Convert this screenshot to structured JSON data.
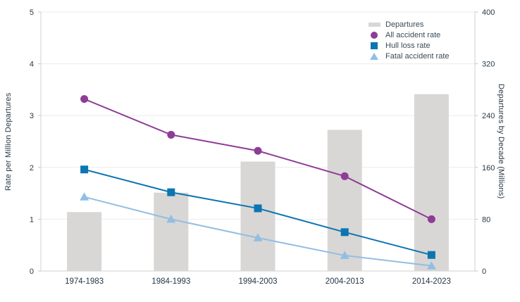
{
  "chart_data": {
    "type": "bar+line combo",
    "categories": [
      "1974-1983",
      "1984-1993",
      "1994-2003",
      "2004-2013",
      "2014-2023"
    ],
    "series": [
      {
        "name": "Departures",
        "type": "bar",
        "axis": "right",
        "marker": "bar",
        "values": [
          91,
          121,
          169,
          218,
          273
        ],
        "color": "#d8d7d5"
      },
      {
        "name": "All accident rate",
        "type": "line",
        "axis": "left",
        "marker": "circle",
        "values": [
          3.32,
          2.63,
          2.32,
          1.83,
          1.0
        ],
        "color": "#8e3c96"
      },
      {
        "name": "Hull loss rate",
        "type": "line",
        "axis": "left",
        "marker": "square",
        "values": [
          1.96,
          1.52,
          1.21,
          0.75,
          0.31
        ],
        "color": "#0c75b2"
      },
      {
        "name": "Fatal accident rate",
        "type": "line",
        "axis": "left",
        "marker": "triangle",
        "values": [
          1.43,
          1.0,
          0.64,
          0.3,
          0.1
        ],
        "color": "#92bee4"
      }
    ],
    "left_axis": {
      "label": "Rate per Million Departures",
      "min": 0,
      "max": 5,
      "ticks": [
        0,
        1,
        2,
        3,
        4,
        5
      ]
    },
    "right_axis": {
      "label": "Departures by Decade (Millions)",
      "min": 0,
      "max": 400,
      "ticks": [
        0,
        80,
        160,
        240,
        320,
        400
      ]
    },
    "legend": {
      "position": "top-right",
      "entries": [
        "Departures",
        "All accident rate",
        "Hull loss rate",
        "Fatal accident rate"
      ]
    },
    "grid": "horizontal",
    "colors": {
      "text": "#253746",
      "gridline": "#ebebeb",
      "axis_line": "#d2d2d2",
      "tick": "#c4c4c4"
    }
  }
}
